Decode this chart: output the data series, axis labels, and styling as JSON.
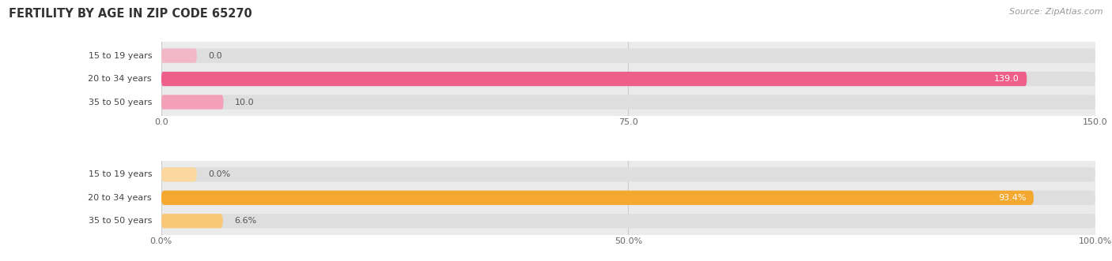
{
  "title": "FERTILITY BY AGE IN ZIP CODE 65270",
  "source": "Source: ZipAtlas.com",
  "top_chart": {
    "categories": [
      "15 to 19 years",
      "20 to 34 years",
      "35 to 50 years"
    ],
    "values": [
      0.0,
      139.0,
      10.0
    ],
    "value_labels": [
      "0.0",
      "139.0",
      "10.0"
    ],
    "xlim": [
      0,
      150
    ],
    "xticks": [
      0.0,
      75.0,
      150.0
    ],
    "xtick_labels": [
      "0.0",
      "75.0",
      "150.0"
    ],
    "bar_color_main": "#ee5f8a",
    "bar_color_light": "#f4a0b8",
    "bar_color_zero": "#f2b8c8"
  },
  "bottom_chart": {
    "categories": [
      "15 to 19 years",
      "20 to 34 years",
      "35 to 50 years"
    ],
    "values": [
      0.0,
      93.4,
      6.6
    ],
    "value_labels": [
      "0.0%",
      "93.4%",
      "6.6%"
    ],
    "xlim": [
      0,
      100
    ],
    "xticks": [
      0.0,
      50.0,
      100.0
    ],
    "xtick_labels": [
      "0.0%",
      "50.0%",
      "100.0%"
    ],
    "bar_color_main": "#f5a830",
    "bar_color_light": "#f8c878",
    "bar_color_zero": "#fad8a0"
  },
  "ax_facecolor": "#ebebeb",
  "bar_bg_color": "#dedede",
  "title_color": "#333333",
  "source_color": "#999999",
  "cat_label_color": "#444444",
  "value_label_dark": "#555555",
  "value_label_white": "#ffffff",
  "grid_color": "#cccccc"
}
